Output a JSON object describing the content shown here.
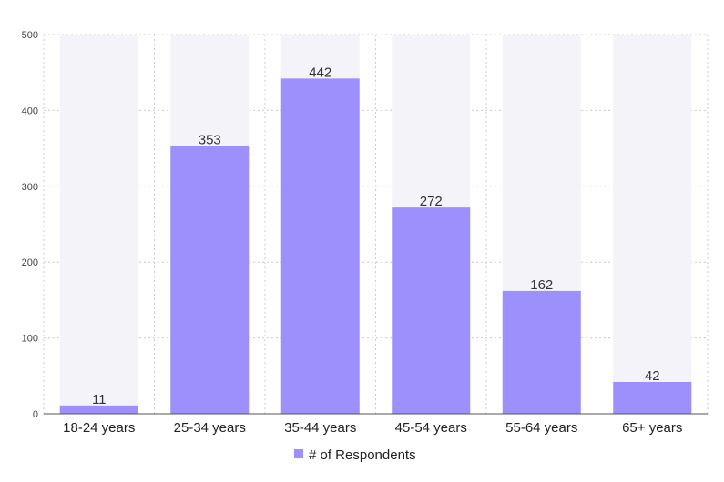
{
  "chart_data": {
    "type": "bar",
    "categories": [
      "18-24 years",
      "25-34 years",
      "35-44 years",
      "45-54 years",
      "55-64 years",
      "65+ years"
    ],
    "series": [
      {
        "name": "# of Respondents",
        "values": [
          11,
          353,
          442,
          272,
          162,
          42
        ]
      }
    ],
    "ylim": [
      0,
      500
    ],
    "yticks": [
      0,
      100,
      200,
      300,
      400,
      500
    ],
    "grid": true,
    "legend": "bottom-center",
    "data_labels": true,
    "colors": {
      "bar": "#9d8ffc",
      "background_bar": "#f3f3f9",
      "grid": "#cccccc",
      "axis": "#555555"
    }
  }
}
